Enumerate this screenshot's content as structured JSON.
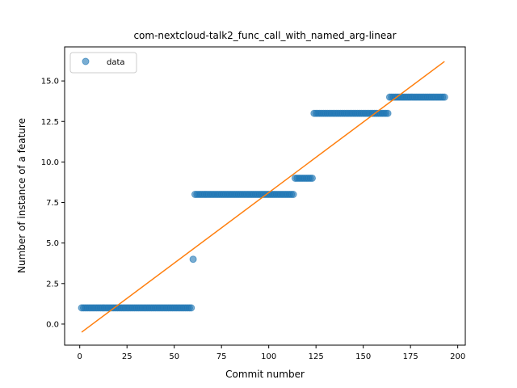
{
  "chart_data": {
    "type": "scatter",
    "title": "com-nextcloud-talk2_func_call_with_named_arg-linear",
    "xlabel": "Commit number",
    "ylabel": "Number of instance of a feature",
    "xlim": [
      -8,
      204
    ],
    "ylim": [
      -1.3,
      17.1
    ],
    "xticks": [
      0,
      25,
      50,
      75,
      100,
      125,
      150,
      175,
      200
    ],
    "yticks": [
      0.0,
      2.5,
      5.0,
      7.5,
      10.0,
      12.5,
      15.0
    ],
    "xtick_labels": [
      "0",
      "25",
      "50",
      "75",
      "100",
      "125",
      "150",
      "175",
      "200"
    ],
    "ytick_labels": [
      "0.0",
      "2.5",
      "5.0",
      "7.5",
      "10.0",
      "12.5",
      "15.0"
    ],
    "legend": {
      "position": "upper-left",
      "entries": [
        "data"
      ]
    },
    "grid": false,
    "colors": {
      "data": "#1f77b4",
      "fit": "#ff7f0e"
    },
    "series": [
      {
        "name": "data",
        "kind": "scatter",
        "segments": [
          {
            "x_from": 1,
            "x_to": 59,
            "y": 1
          },
          {
            "x_from": 60,
            "x_to": 60,
            "y": 4
          },
          {
            "x_from": 61,
            "x_to": 113,
            "y": 8
          },
          {
            "x_from": 114,
            "x_to": 123,
            "y": 9
          },
          {
            "x_from": 124,
            "x_to": 163,
            "y": 13
          },
          {
            "x_from": 164,
            "x_to": 193,
            "y": 14
          }
        ]
      },
      {
        "kind": "line",
        "x": [
          1,
          193
        ],
        "y": [
          -0.5,
          16.2
        ]
      }
    ]
  }
}
